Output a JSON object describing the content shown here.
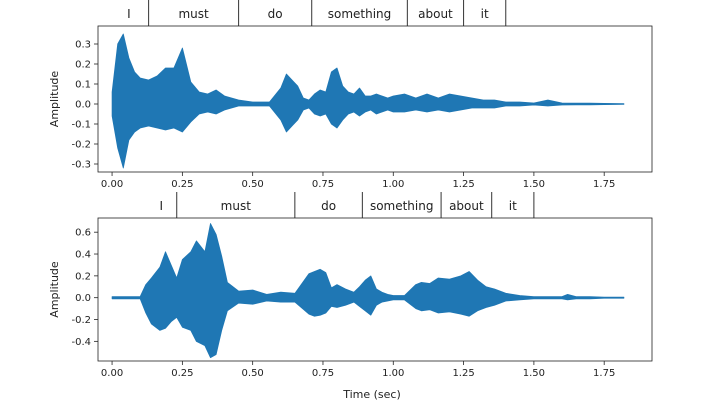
{
  "chart_data": [
    {
      "type": "line",
      "ylabel": "Amplitude",
      "xlabel": "",
      "xlim": [
        -0.05,
        1.92
      ],
      "ylim": [
        -0.34,
        0.39
      ],
      "xticks": [
        "0.00",
        "0.25",
        "0.50",
        "0.75",
        "1.00",
        "1.25",
        "1.50",
        "1.75"
      ],
      "xtick_values": [
        0.0,
        0.25,
        0.5,
        0.75,
        1.0,
        1.25,
        1.5,
        1.75
      ],
      "yticks": [
        "-0.3",
        "-0.2",
        "-0.1",
        "0.0",
        "0.1",
        "0.2",
        "0.3"
      ],
      "ytick_values": [
        -0.3,
        -0.2,
        -0.1,
        0.0,
        0.1,
        0.2,
        0.3
      ],
      "color": "#1f77b4",
      "grid": false,
      "words": [
        {
          "text": "I",
          "start": -0.01,
          "end": 0.13
        },
        {
          "text": "must",
          "start": 0.13,
          "end": 0.45
        },
        {
          "text": "do",
          "start": 0.45,
          "end": 0.71
        },
        {
          "text": "something",
          "start": 0.71,
          "end": 1.05
        },
        {
          "text": "about",
          "start": 1.05,
          "end": 1.25
        },
        {
          "text": "it",
          "start": 1.25,
          "end": 1.4
        }
      ],
      "series": [
        {
          "x": [
            0.0,
            0.02,
            0.04,
            0.06,
            0.08,
            0.1,
            0.13,
            0.16,
            0.19,
            0.22,
            0.25,
            0.28,
            0.31,
            0.34,
            0.37,
            0.4,
            0.45,
            0.5,
            0.56,
            0.6,
            0.62,
            0.64,
            0.66,
            0.68,
            0.7,
            0.72,
            0.74,
            0.76,
            0.78,
            0.8,
            0.82,
            0.84,
            0.86,
            0.88,
            0.9,
            0.92,
            0.94,
            0.96,
            0.98,
            1.0,
            1.04,
            1.08,
            1.12,
            1.16,
            1.2,
            1.24,
            1.28,
            1.32,
            1.36,
            1.4,
            1.45,
            1.5,
            1.55,
            1.6,
            1.65,
            1.7,
            1.75,
            1.82
          ],
          "max": [
            0.06,
            0.3,
            0.35,
            0.23,
            0.16,
            0.13,
            0.12,
            0.14,
            0.18,
            0.18,
            0.28,
            0.11,
            0.06,
            0.05,
            0.07,
            0.04,
            0.02,
            0.01,
            0.01,
            0.08,
            0.15,
            0.12,
            0.09,
            0.03,
            0.02,
            0.05,
            0.07,
            0.06,
            0.16,
            0.18,
            0.09,
            0.06,
            0.05,
            0.08,
            0.04,
            0.04,
            0.05,
            0.04,
            0.03,
            0.04,
            0.05,
            0.03,
            0.05,
            0.03,
            0.05,
            0.04,
            0.03,
            0.02,
            0.02,
            0.01,
            0.01,
            0.005,
            0.02,
            0.005,
            0.004,
            0.004,
            0.003,
            0.002
          ],
          "min": [
            -0.06,
            -0.22,
            -0.32,
            -0.18,
            -0.14,
            -0.12,
            -0.11,
            -0.12,
            -0.13,
            -0.12,
            -0.14,
            -0.09,
            -0.05,
            -0.04,
            -0.05,
            -0.03,
            -0.01,
            -0.01,
            -0.01,
            -0.08,
            -0.14,
            -0.11,
            -0.08,
            -0.03,
            -0.02,
            -0.05,
            -0.06,
            -0.05,
            -0.1,
            -0.12,
            -0.08,
            -0.05,
            -0.04,
            -0.06,
            -0.04,
            -0.03,
            -0.05,
            -0.04,
            -0.03,
            -0.04,
            -0.04,
            -0.03,
            -0.04,
            -0.03,
            -0.04,
            -0.03,
            -0.02,
            -0.02,
            -0.02,
            -0.01,
            -0.01,
            -0.005,
            -0.01,
            -0.005,
            -0.004,
            -0.004,
            -0.003,
            -0.002
          ]
        }
      ]
    },
    {
      "type": "line",
      "ylabel": "Amplitude",
      "xlabel": "Time (sec)",
      "xlim": [
        -0.05,
        1.92
      ],
      "ylim": [
        -0.58,
        0.73
      ],
      "xticks": [
        "0.00",
        "0.25",
        "0.50",
        "0.75",
        "1.00",
        "1.25",
        "1.50",
        "1.75"
      ],
      "xtick_values": [
        0.0,
        0.25,
        0.5,
        0.75,
        1.0,
        1.25,
        1.5,
        1.75
      ],
      "yticks": [
        "-0.4",
        "-0.2",
        "0.0",
        "0.2",
        "0.4",
        "0.6"
      ],
      "ytick_values": [
        -0.4,
        -0.2,
        0.0,
        0.2,
        0.4,
        0.6
      ],
      "color": "#1f77b4",
      "grid": false,
      "words": [
        {
          "text": "I",
          "start": 0.12,
          "end": 0.23
        },
        {
          "text": "must",
          "start": 0.23,
          "end": 0.65
        },
        {
          "text": "do",
          "start": 0.65,
          "end": 0.89
        },
        {
          "text": "something",
          "start": 0.89,
          "end": 1.17
        },
        {
          "text": "about",
          "start": 1.17,
          "end": 1.35
        },
        {
          "text": "it",
          "start": 1.35,
          "end": 1.5
        }
      ],
      "series": [
        {
          "x": [
            0.0,
            0.05,
            0.1,
            0.12,
            0.14,
            0.17,
            0.19,
            0.21,
            0.23,
            0.25,
            0.28,
            0.3,
            0.33,
            0.35,
            0.37,
            0.39,
            0.41,
            0.45,
            0.5,
            0.55,
            0.6,
            0.65,
            0.7,
            0.72,
            0.74,
            0.76,
            0.78,
            0.8,
            0.83,
            0.86,
            0.88,
            0.9,
            0.92,
            0.94,
            0.96,
            0.98,
            1.0,
            1.04,
            1.08,
            1.1,
            1.13,
            1.16,
            1.2,
            1.24,
            1.27,
            1.3,
            1.33,
            1.36,
            1.4,
            1.45,
            1.5,
            1.55,
            1.6,
            1.62,
            1.65,
            1.7,
            1.75,
            1.82
          ],
          "max": [
            0.01,
            0.01,
            0.01,
            0.12,
            0.18,
            0.28,
            0.42,
            0.3,
            0.18,
            0.35,
            0.42,
            0.52,
            0.42,
            0.68,
            0.58,
            0.38,
            0.14,
            0.06,
            0.07,
            0.03,
            0.05,
            0.04,
            0.22,
            0.24,
            0.26,
            0.23,
            0.09,
            0.12,
            0.08,
            0.05,
            0.1,
            0.16,
            0.2,
            0.08,
            0.05,
            0.03,
            0.02,
            0.02,
            0.12,
            0.14,
            0.13,
            0.18,
            0.17,
            0.2,
            0.24,
            0.16,
            0.1,
            0.08,
            0.04,
            0.02,
            0.01,
            0.01,
            0.01,
            0.03,
            0.01,
            0.01,
            0.005,
            0.005
          ],
          "min": [
            -0.01,
            -0.01,
            -0.01,
            -0.14,
            -0.24,
            -0.3,
            -0.28,
            -0.22,
            -0.18,
            -0.27,
            -0.3,
            -0.4,
            -0.44,
            -0.55,
            -0.52,
            -0.3,
            -0.12,
            -0.05,
            -0.06,
            -0.03,
            -0.04,
            -0.04,
            -0.15,
            -0.17,
            -0.16,
            -0.14,
            -0.08,
            -0.09,
            -0.07,
            -0.04,
            -0.08,
            -0.12,
            -0.16,
            -0.07,
            -0.04,
            -0.03,
            -0.02,
            -0.02,
            -0.1,
            -0.12,
            -0.11,
            -0.14,
            -0.13,
            -0.15,
            -0.17,
            -0.12,
            -0.09,
            -0.07,
            -0.03,
            -0.02,
            -0.01,
            -0.01,
            -0.01,
            -0.02,
            -0.01,
            -0.01,
            -0.005,
            -0.005
          ]
        }
      ]
    }
  ]
}
